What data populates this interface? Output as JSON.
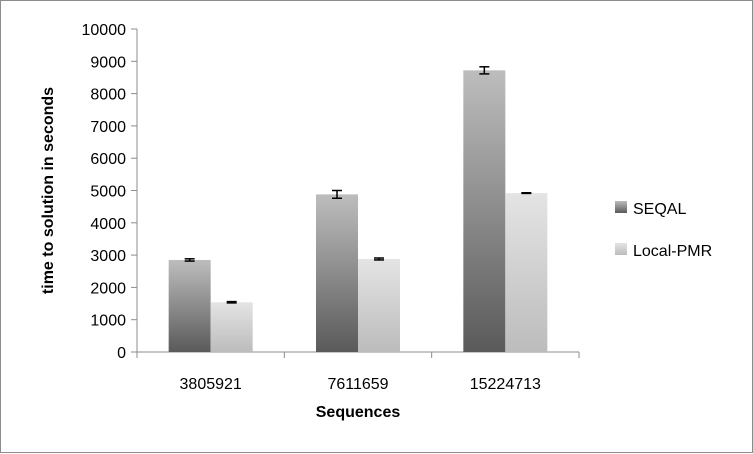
{
  "chart_data": {
    "type": "bar",
    "categories": [
      "3805921",
      "7611659",
      "15224713"
    ],
    "series": [
      {
        "name": "SEQAL",
        "values": [
          2850,
          4880,
          8720
        ],
        "errors": [
          35,
          120,
          110
        ],
        "color_dark": "#5a5a5a",
        "color_light": "#bdbdbd"
      },
      {
        "name": "Local-PMR",
        "values": [
          1540,
          2880,
          4920
        ],
        "errors": [
          20,
          30,
          10
        ],
        "color_dark": "#bcbcbc",
        "color_light": "#e4e4e4"
      }
    ],
    "xlabel": "Sequences",
    "ylabel": "time to solution in seconds",
    "ylim": [
      0,
      10000
    ],
    "yticks": [
      0,
      1000,
      2000,
      3000,
      4000,
      5000,
      6000,
      7000,
      8000,
      9000,
      10000
    ],
    "grid": false,
    "legend_position": "right"
  }
}
